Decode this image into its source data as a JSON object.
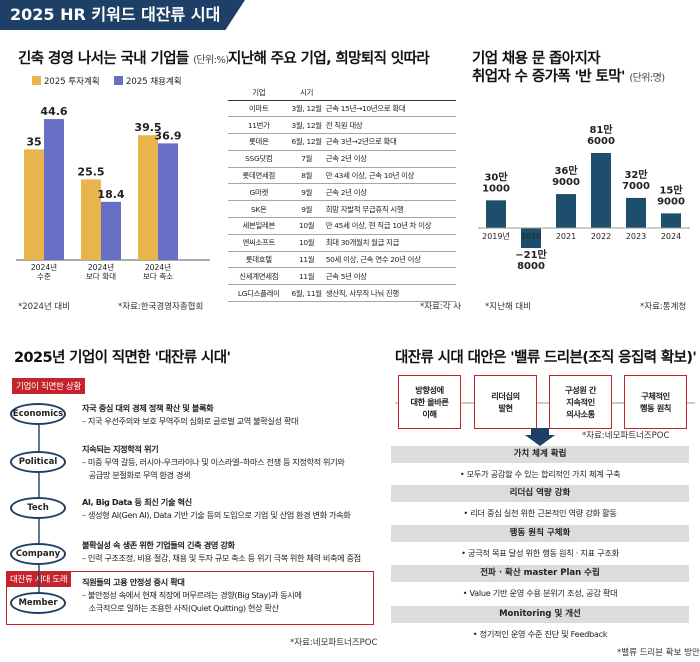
{
  "page_title": "2025 HR 키워드 대잔류 시대",
  "section1": {
    "title": "긴축 경영 나서는 국내 기업들",
    "unit": "(단위:%)",
    "note_left": "*2024년 대비",
    "note_right": "*자료:한국경영자총협회"
  },
  "section2": {
    "title": "지난해 주요 기업, 희망퇴직 잇따라",
    "headers": [
      "기업",
      "시기",
      ""
    ],
    "rows": [
      {
        "company": "이마트",
        "period": "3월, 12월",
        "content": "근속 15년→10년으로 확대"
      },
      {
        "company": "11번가",
        "period": "3월, 12월",
        "content": "전 직원 대상"
      },
      {
        "company": "롯데온",
        "period": "6월, 12월",
        "content": "근속 3년→2년으로 확대"
      },
      {
        "company": "SSG닷컴",
        "period": "7월",
        "content": "근속 2년 이상"
      },
      {
        "company": "롯데면세점",
        "period": "8월",
        "content": "만 43세 이상, 근속 10년 이상"
      },
      {
        "company": "G마켓",
        "period": "9월",
        "content": "근속 2년 이상"
      },
      {
        "company": "SK온",
        "period": "9월",
        "content": "희망 자발적 무급휴직 시행"
      },
      {
        "company": "세븐일레븐",
        "period": "10월",
        "content": "만 45세 이상, 현 직급 10년 차 이상"
      },
      {
        "company": "엔씨소프트",
        "period": "10월",
        "content": "최대 30개월치 월급 지급"
      },
      {
        "company": "롯데호텔",
        "period": "11월",
        "content": "50세 이상, 근속 연수 20년 이상"
      },
      {
        "company": "신세계면세점",
        "period": "11월",
        "content": "근속 5년 이상"
      },
      {
        "company": "LG디스플레이",
        "period": "6월, 11월",
        "content": "생산직, 사무직 나눠 진행"
      }
    ],
    "note": "*자료:각 사"
  },
  "section3": {
    "title_line1": "기업 채용 문 좁아지자",
    "title_line2": "취업자 수 증가폭 '반 토막'",
    "unit": "(단위:명)",
    "note_left": "*지난해 대비",
    "note_right": "*자료:통계청"
  },
  "section4": {
    "title": "2025년 기업이 직면한 '대잔류 시대'",
    "tag": "기업이 직면한 상황",
    "tag2": "대잔류 시대 도래",
    "items": [
      {
        "label": "Economics",
        "head": "자국 중심 대외 경제 정책 확산 및 블록화",
        "sub": [
          "– 지국 우선주의와 보호 무역주의 심화로 글로벌 교역 불확실성 확대"
        ]
      },
      {
        "label": "Political",
        "head": "지속되는 지정학적 위기",
        "sub": [
          "– 미중 무역 갈등, 러시아-우크라이나 및 이스라엘–하마스 전쟁 등  지정학적 위기와",
          "   공급망 분절화로 무역 환경 경색"
        ]
      },
      {
        "label": "Tech",
        "head": "AI, Big Data 등 최신 기술 혁신",
        "sub": [
          "– 생성형 AI(Gen AI), Data 기반 기술 등의 도입으로 기업 및 산업 환경  변화 가속화"
        ]
      },
      {
        "label": "Company",
        "head": "불확실성 속 생존 위한 기업들의 긴축 경영 강화",
        "sub": [
          "– 인력 구조조정, 비용 절감, 채용 및 투자 규모 축소 등 위기 극복 위한  체력 비축에 중점"
        ]
      },
      {
        "label": "Member",
        "head": "직원들의 고용 안정성 중시 확대",
        "sub": [
          "– 불안정성 속에서 현재 직장에 머무르려는 경향(Big Stay)과 동시에",
          "   소극적으로 일하는 조용한 사직(Quiet Quitting) 현상 확산"
        ]
      }
    ],
    "note": "*자료:네모파트너즈POC"
  },
  "section5": {
    "title": "대잔류 시대 대안은 '밸류 드리븐(조직 응집력 확보)'",
    "boxes": [
      "방향성에\n대한 올바른\n이해",
      "리더십의\n발현",
      "구성원 간\n지속적인\n의사소통",
      "구체적인\n행동 원칙"
    ],
    "note_top": "*자료:네모파트너즈POC",
    "steps": [
      {
        "head": "가치 체계 확립",
        "item": "• 모두가 공감할 수 있는 합리적인 가치 체계 구축"
      },
      {
        "head": "리더십 역량 강화",
        "item": "• 리더 중심 실천 위한 근본적인 역량 강화 활동"
      },
      {
        "head": "행동 원칙 구체화",
        "item": "• 궁극적 목표 달성 위한 행동 원칙 · 지표 구조화"
      },
      {
        "head": "전파 · 확산 master Plan 수립",
        "item": "• Value 기반 운영 수용 분위기 조성, 공감 확대"
      },
      {
        "head": "Monitoring 및 개선",
        "item": "• 정기적인 운영 수준 진단 및 Feedback"
      }
    ],
    "note_bottom": "*밸류 드리븐 확보 방안"
  },
  "colors": {
    "navy": "#1e3f66",
    "gold": "#e8b44c",
    "purple": "#6a6fc6",
    "teal": "#1d4e6b",
    "red": "#c4232b"
  },
  "chart_data": [
    {
      "type": "bar",
      "title": "긴축 경영 나서는 국내 기업들",
      "categories": [
        "2024년\n수준",
        "2024년\n보다 확대",
        "2024년\n보다 축소"
      ],
      "series": [
        {
          "name": "2025 투자계획",
          "values": [
            35,
            25.5,
            39.5
          ],
          "color": "#e8b44c"
        },
        {
          "name": "2025 채용계획",
          "values": [
            44.6,
            18.4,
            36.9
          ],
          "color": "#6a6fc6"
        }
      ],
      "ylim": [
        0,
        50
      ],
      "legend": "top",
      "grid": false
    },
    {
      "type": "bar",
      "title": "기업 채용 문 좁아지자 취업자 수 증가폭 '반 토막'",
      "categories": [
        "2019년",
        "2020",
        "2021",
        "2022",
        "2023",
        "2024"
      ],
      "values": [
        301000,
        -218000,
        369000,
        816000,
        327000,
        159000
      ],
      "labels": [
        [
          "30만",
          "1000"
        ],
        [
          "−21만",
          "8000"
        ],
        [
          "36만",
          "9000"
        ],
        [
          "81만",
          "6000"
        ],
        [
          "32만",
          "7000"
        ],
        [
          "15만",
          "9000"
        ]
      ],
      "ylim": [
        -300000,
        900000
      ],
      "grid": false
    }
  ]
}
